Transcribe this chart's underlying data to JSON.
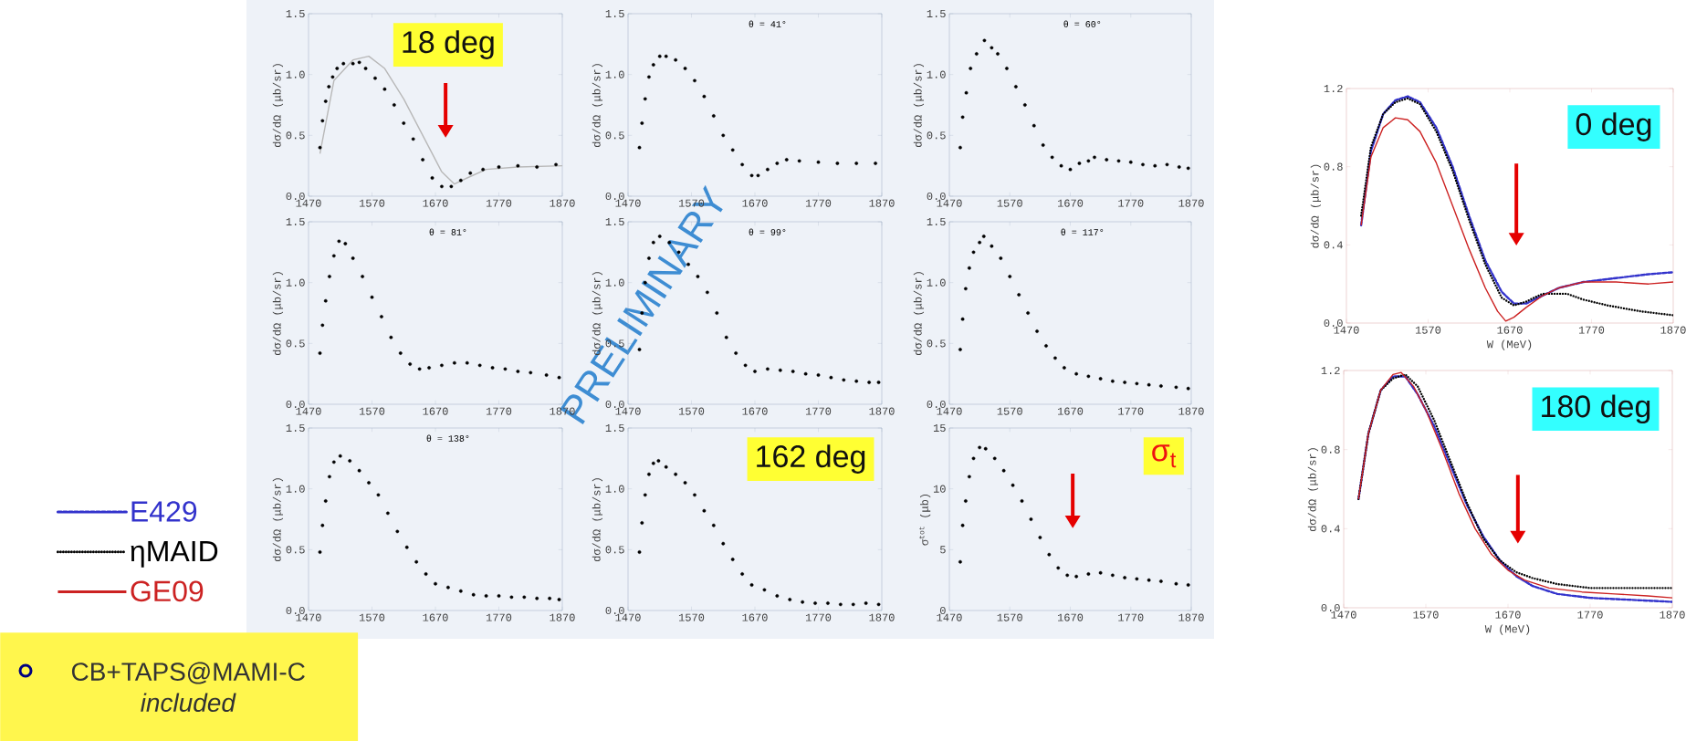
{
  "chart_data": [
    {
      "type": "scatter",
      "ylabel": "dσ/dΩ (μb/sr)",
      "marker": "circle",
      "xlim": [
        1470,
        1870
      ],
      "xticks": [
        1470,
        1570,
        1670,
        1770,
        1870
      ],
      "ylim": [
        0,
        1.5
      ],
      "yticks": [
        {
          "value": 0,
          "label": "0.0"
        },
        {
          "value": 0.5,
          "label": "0.5"
        },
        {
          "value": 1,
          "label": "1.0"
        },
        {
          "value": 1.5,
          "label": "1.5"
        }
      ],
      "annotations": [
        "18 deg"
      ],
      "series": [
        {
          "type": "scatter",
          "color": "#000000",
          "x": [
            1488,
            1492,
            1497,
            1502,
            1508,
            1515,
            1525,
            1540,
            1550,
            1560,
            1575,
            1590,
            1605,
            1620,
            1635,
            1650,
            1665,
            1680,
            1695,
            1710,
            1725,
            1745,
            1770,
            1800,
            1830,
            1860
          ],
          "values": [
            0.4,
            0.62,
            0.78,
            0.9,
            0.98,
            1.05,
            1.09,
            1.09,
            1.1,
            1.05,
            0.97,
            0.88,
            0.75,
            0.6,
            0.47,
            0.3,
            0.15,
            0.08,
            0.08,
            0.13,
            0.19,
            0.22,
            0.24,
            0.25,
            0.24,
            0.26
          ]
        },
        {
          "type": "line",
          "marker": "none",
          "color": "#b8b8b8",
          "x": [
            1488,
            1510,
            1540,
            1565,
            1590,
            1620,
            1650,
            1680,
            1700,
            1720,
            1750,
            1800,
            1870
          ],
          "values": [
            0.35,
            0.95,
            1.12,
            1.15,
            1.05,
            0.8,
            0.5,
            0.2,
            0.1,
            0.15,
            0.22,
            0.24,
            0.25
          ]
        }
      ]
    },
    {
      "type": "scatter",
      "title": "θ = 41°",
      "ylabel": "dσ/dΩ (μb/sr)",
      "marker": "circle",
      "xlim": [
        1470,
        1870
      ],
      "xticks": [
        1470,
        1570,
        1670,
        1770,
        1870
      ],
      "ylim": [
        0,
        1.5
      ],
      "yticks": [
        {
          "value": 0,
          "label": "0.0"
        },
        {
          "value": 0.5,
          "label": "0.5"
        },
        {
          "value": 1,
          "label": "1.0"
        },
        {
          "value": 1.5,
          "label": "1.5"
        }
      ],
      "series": [
        {
          "type": "scatter",
          "color": "#000000",
          "x": [
            1488,
            1492,
            1497,
            1503,
            1510,
            1520,
            1530,
            1545,
            1560,
            1575,
            1590,
            1605,
            1620,
            1635,
            1650,
            1665,
            1675,
            1690,
            1705,
            1720,
            1740,
            1770,
            1800,
            1830,
            1860
          ],
          "values": [
            0.4,
            0.6,
            0.8,
            0.98,
            1.08,
            1.15,
            1.15,
            1.12,
            1.05,
            0.95,
            0.82,
            0.66,
            0.5,
            0.38,
            0.26,
            0.17,
            0.17,
            0.22,
            0.27,
            0.3,
            0.29,
            0.28,
            0.27,
            0.27,
            0.27
          ]
        }
      ]
    },
    {
      "type": "scatter",
      "title": "θ = 60°",
      "ylabel": "dσ/dΩ (μb/sr)",
      "marker": "circle",
      "xlim": [
        1470,
        1870
      ],
      "xticks": [
        1470,
        1570,
        1670,
        1770,
        1870
      ],
      "ylim": [
        0,
        1.5
      ],
      "yticks": [
        {
          "value": 0,
          "label": "0.0"
        },
        {
          "value": 0.5,
          "label": "0.5"
        },
        {
          "value": 1,
          "label": "1.0"
        },
        {
          "value": 1.5,
          "label": "1.5"
        }
      ],
      "series": [
        {
          "type": "scatter",
          "color": "#000000",
          "x": [
            1488,
            1492,
            1498,
            1505,
            1515,
            1528,
            1540,
            1550,
            1565,
            1580,
            1595,
            1610,
            1625,
            1640,
            1655,
            1670,
            1685,
            1700,
            1710,
            1730,
            1750,
            1770,
            1790,
            1810,
            1830,
            1850,
            1865
          ],
          "values": [
            0.4,
            0.65,
            0.85,
            1.05,
            1.17,
            1.28,
            1.22,
            1.17,
            1.05,
            0.9,
            0.75,
            0.58,
            0.42,
            0.32,
            0.25,
            0.22,
            0.27,
            0.29,
            0.32,
            0.3,
            0.29,
            0.28,
            0.26,
            0.25,
            0.26,
            0.24,
            0.23
          ]
        }
      ]
    },
    {
      "type": "scatter",
      "title": "θ = 81°",
      "ylabel": "dσ/dΩ (μb/sr)",
      "marker": "circle",
      "xlim": [
        1470,
        1870
      ],
      "xticks": [
        1470,
        1570,
        1670,
        1770,
        1870
      ],
      "ylim": [
        0,
        1.5
      ],
      "yticks": [
        {
          "value": 0,
          "label": "0.0"
        },
        {
          "value": 0.5,
          "label": "0.5"
        },
        {
          "value": 1,
          "label": "1.0"
        },
        {
          "value": 1.5,
          "label": "1.5"
        }
      ],
      "series": [
        {
          "type": "scatter",
          "color": "#000000",
          "x": [
            1488,
            1492,
            1497,
            1503,
            1510,
            1518,
            1528,
            1540,
            1555,
            1570,
            1585,
            1600,
            1615,
            1630,
            1645,
            1660,
            1680,
            1700,
            1720,
            1740,
            1760,
            1780,
            1800,
            1820,
            1845,
            1865
          ],
          "values": [
            0.42,
            0.65,
            0.85,
            1.05,
            1.22,
            1.34,
            1.32,
            1.2,
            1.05,
            0.88,
            0.72,
            0.55,
            0.42,
            0.33,
            0.29,
            0.3,
            0.32,
            0.34,
            0.34,
            0.32,
            0.3,
            0.29,
            0.27,
            0.26,
            0.24,
            0.22
          ]
        }
      ]
    },
    {
      "type": "scatter",
      "title": "θ = 99°",
      "ylabel": "dσ/dΩ (μb/sr)",
      "marker": "circle",
      "xlim": [
        1470,
        1870
      ],
      "xticks": [
        1470,
        1570,
        1670,
        1770,
        1870
      ],
      "ylim": [
        0,
        1.5
      ],
      "yticks": [
        {
          "value": 0,
          "label": "0.0"
        },
        {
          "value": 0.5,
          "label": "0.5"
        },
        {
          "value": 1,
          "label": "1.0"
        },
        {
          "value": 1.5,
          "label": "1.5"
        }
      ],
      "annotations": [
        "PRELIMINARY"
      ],
      "series": [
        {
          "type": "scatter",
          "color": "#000000",
          "x": [
            1488,
            1492,
            1497,
            1503,
            1510,
            1520,
            1535,
            1550,
            1565,
            1580,
            1595,
            1610,
            1625,
            1640,
            1655,
            1670,
            1690,
            1710,
            1730,
            1750,
            1770,
            1790,
            1810,
            1830,
            1850,
            1865
          ],
          "values": [
            0.45,
            0.75,
            1.0,
            1.2,
            1.33,
            1.38,
            1.33,
            1.25,
            1.15,
            1.05,
            0.92,
            0.75,
            0.55,
            0.42,
            0.32,
            0.27,
            0.29,
            0.28,
            0.27,
            0.25,
            0.24,
            0.22,
            0.2,
            0.19,
            0.18,
            0.18
          ]
        }
      ]
    },
    {
      "type": "scatter",
      "title": "θ = 117°",
      "ylabel": "dσ/dΩ (μb/sr)",
      "marker": "circle",
      "xlim": [
        1470,
        1870
      ],
      "xticks": [
        1470,
        1570,
        1670,
        1770,
        1870
      ],
      "ylim": [
        0,
        1.5
      ],
      "yticks": [
        {
          "value": 0,
          "label": "0.0"
        },
        {
          "value": 0.5,
          "label": "0.5"
        },
        {
          "value": 1,
          "label": "1.0"
        },
        {
          "value": 1.5,
          "label": "1.5"
        }
      ],
      "series": [
        {
          "type": "scatter",
          "color": "#000000",
          "x": [
            1488,
            1492,
            1497,
            1503,
            1510,
            1520,
            1527,
            1540,
            1555,
            1570,
            1585,
            1600,
            1615,
            1630,
            1645,
            1660,
            1680,
            1700,
            1720,
            1740,
            1760,
            1780,
            1800,
            1820,
            1845,
            1865
          ],
          "values": [
            0.45,
            0.7,
            0.95,
            1.12,
            1.25,
            1.33,
            1.38,
            1.3,
            1.2,
            1.05,
            0.9,
            0.75,
            0.6,
            0.48,
            0.38,
            0.3,
            0.25,
            0.23,
            0.21,
            0.19,
            0.18,
            0.17,
            0.16,
            0.15,
            0.14,
            0.13
          ]
        }
      ]
    },
    {
      "type": "scatter",
      "title": "θ = 138°",
      "ylabel": "dσ/dΩ (μb/sr)",
      "marker": "circle",
      "xlim": [
        1470,
        1870
      ],
      "xticks": [
        1470,
        1570,
        1670,
        1770,
        1870
      ],
      "ylim": [
        0,
        1.5
      ],
      "yticks": [
        {
          "value": 0,
          "label": "0.0"
        },
        {
          "value": 0.5,
          "label": "0.5"
        },
        {
          "value": 1,
          "label": "1.0"
        },
        {
          "value": 1.5,
          "label": "1.5"
        }
      ],
      "series": [
        {
          "type": "scatter",
          "color": "#000000",
          "x": [
            1488,
            1492,
            1497,
            1503,
            1510,
            1520,
            1535,
            1550,
            1565,
            1580,
            1595,
            1610,
            1625,
            1640,
            1655,
            1670,
            1690,
            1710,
            1730,
            1750,
            1770,
            1790,
            1810,
            1830,
            1850,
            1865
          ],
          "values": [
            0.48,
            0.7,
            0.9,
            1.1,
            1.22,
            1.27,
            1.23,
            1.15,
            1.05,
            0.95,
            0.8,
            0.65,
            0.52,
            0.4,
            0.3,
            0.22,
            0.19,
            0.16,
            0.13,
            0.12,
            0.12,
            0.11,
            0.11,
            0.1,
            0.1,
            0.09
          ]
        }
      ]
    },
    {
      "type": "scatter",
      "ylabel": "dσ/dΩ (μb/sr)",
      "marker": "circle",
      "xlim": [
        1470,
        1870
      ],
      "xticks": [
        1470,
        1570,
        1670,
        1770,
        1870
      ],
      "ylim": [
        0,
        1.5
      ],
      "yticks": [
        {
          "value": 0,
          "label": "0.0"
        },
        {
          "value": 0.5,
          "label": "0.5"
        },
        {
          "value": 1,
          "label": "1.0"
        },
        {
          "value": 1.5,
          "label": "1.5"
        }
      ],
      "annotations": [
        "162 deg"
      ],
      "series": [
        {
          "type": "scatter",
          "color": "#000000",
          "x": [
            1488,
            1492,
            1497,
            1503,
            1510,
            1518,
            1530,
            1545,
            1560,
            1575,
            1590,
            1605,
            1620,
            1635,
            1650,
            1665,
            1685,
            1705,
            1725,
            1745,
            1765,
            1785,
            1805,
            1825,
            1845,
            1865
          ],
          "values": [
            0.48,
            0.72,
            0.95,
            1.12,
            1.21,
            1.23,
            1.18,
            1.12,
            1.05,
            0.95,
            0.82,
            0.7,
            0.55,
            0.42,
            0.3,
            0.21,
            0.17,
            0.12,
            0.09,
            0.07,
            0.06,
            0.06,
            0.05,
            0.05,
            0.06,
            0.05
          ]
        }
      ]
    },
    {
      "type": "scatter",
      "ylabel": "σ$^{tot}$ (μb)",
      "marker": "circle",
      "xlim": [
        1470,
        1870
      ],
      "xticks": [
        1470,
        1570,
        1670,
        1770,
        1870
      ],
      "ylim": [
        0,
        15
      ],
      "yticks": [
        0,
        5,
        10,
        15
      ],
      "annotations": [
        "σ$_{t}$"
      ],
      "series": [
        {
          "type": "scatter",
          "color": "#000000",
          "x": [
            1488,
            1492,
            1497,
            1503,
            1510,
            1520,
            1530,
            1545,
            1560,
            1575,
            1590,
            1605,
            1620,
            1635,
            1650,
            1665,
            1680,
            1700,
            1720,
            1740,
            1760,
            1780,
            1800,
            1820,
            1845,
            1865
          ],
          "values": [
            4.0,
            7.0,
            9.0,
            11.0,
            12.5,
            13.4,
            13.3,
            12.5,
            11.5,
            10.3,
            9.0,
            7.5,
            6.0,
            4.6,
            3.5,
            2.9,
            2.8,
            3.0,
            3.1,
            2.9,
            2.7,
            2.6,
            2.5,
            2.4,
            2.2,
            2.1
          ]
        }
      ]
    },
    {
      "type": "line",
      "xlabel": "W (MeV)",
      "ylabel": "dσ/dΩ (μb/sr)",
      "legend": "left",
      "xlim": [
        1470,
        1870
      ],
      "xticks": [
        1470,
        1570,
        1670,
        1770,
        1870
      ],
      "ylim": [
        0,
        1.2
      ],
      "yticks": [
        {
          "value": 0,
          "label": "0.0"
        },
        {
          "value": 0.4,
          "label": "0.4"
        },
        {
          "value": 0.8,
          "label": "0.8"
        },
        {
          "value": 1.2,
          "label": "1.2"
        }
      ],
      "annotations": [
        "0 deg",
        "CB+TAPS@MAMI-C *included*"
      ],
      "series": [
        {
          "name": "E429",
          "color": "#3333cc",
          "line_style": "dashed",
          "x": [
            1488,
            1500,
            1515,
            1530,
            1545,
            1560,
            1580,
            1600,
            1620,
            1640,
            1660,
            1675,
            1690,
            1710,
            1730,
            1760,
            1800,
            1840,
            1870
          ],
          "values": [
            0.5,
            0.88,
            1.07,
            1.14,
            1.16,
            1.13,
            1.0,
            0.8,
            0.55,
            0.32,
            0.16,
            0.1,
            0.1,
            0.14,
            0.18,
            0.21,
            0.23,
            0.25,
            0.26
          ]
        },
        {
          "name": "ηMAID",
          "color": "#000000",
          "line_style": "dotted",
          "x": [
            1488,
            1500,
            1515,
            1530,
            1545,
            1560,
            1580,
            1600,
            1620,
            1640,
            1660,
            1675,
            1690,
            1710,
            1740,
            1760,
            1790,
            1830,
            1870
          ],
          "values": [
            0.55,
            0.9,
            1.07,
            1.13,
            1.15,
            1.12,
            0.98,
            0.78,
            0.53,
            0.3,
            0.13,
            0.09,
            0.11,
            0.15,
            0.15,
            0.12,
            0.09,
            0.06,
            0.04
          ]
        },
        {
          "name": "GE09",
          "color": "#cc2222",
          "line_style": "solid",
          "x": [
            1488,
            1500,
            1515,
            1530,
            1545,
            1560,
            1580,
            1600,
            1620,
            1640,
            1655,
            1665,
            1675,
            1690,
            1710,
            1730,
            1760,
            1800,
            1840,
            1870
          ],
          "values": [
            0.5,
            0.85,
            1.0,
            1.05,
            1.04,
            0.98,
            0.82,
            0.6,
            0.38,
            0.18,
            0.06,
            0.01,
            0.03,
            0.08,
            0.14,
            0.18,
            0.21,
            0.21,
            0.2,
            0.21
          ]
        }
      ]
    },
    {
      "type": "line",
      "xlabel": "W (MeV)",
      "ylabel": "dσ/dΩ (μb/sr)",
      "xlim": [
        1470,
        1870
      ],
      "xticks": [
        1470,
        1570,
        1670,
        1770,
        1870
      ],
      "ylim": [
        0,
        1.2
      ],
      "yticks": [
        {
          "value": 0,
          "label": "0.0"
        },
        {
          "value": 0.4,
          "label": "0.4"
        },
        {
          "value": 0.8,
          "label": "0.8"
        },
        {
          "value": 1.2,
          "label": "1.2"
        }
      ],
      "annotations": [
        "180 deg"
      ],
      "series": [
        {
          "color": "#3333cc",
          "line_style": "dashed",
          "x": [
            1488,
            1500,
            1515,
            1530,
            1545,
            1560,
            1580,
            1600,
            1620,
            1640,
            1660,
            1680,
            1700,
            1730,
            1770,
            1820,
            1870
          ],
          "values": [
            0.55,
            0.88,
            1.1,
            1.17,
            1.17,
            1.08,
            0.92,
            0.72,
            0.52,
            0.36,
            0.24,
            0.16,
            0.11,
            0.07,
            0.05,
            0.04,
            0.03
          ]
        },
        {
          "color": "#000000",
          "line_style": "dotted",
          "x": [
            1488,
            1500,
            1515,
            1530,
            1545,
            1560,
            1580,
            1600,
            1620,
            1640,
            1660,
            1680,
            1700,
            1730,
            1770,
            1820,
            1870
          ],
          "values": [
            0.55,
            0.88,
            1.1,
            1.16,
            1.18,
            1.12,
            0.95,
            0.74,
            0.53,
            0.35,
            0.24,
            0.18,
            0.15,
            0.12,
            0.1,
            0.1,
            0.1
          ]
        },
        {
          "color": "#cc2222",
          "line_style": "solid",
          "x": [
            1488,
            1500,
            1515,
            1530,
            1540,
            1555,
            1570,
            1590,
            1610,
            1630,
            1650,
            1670,
            1690,
            1720,
            1760,
            1800,
            1840,
            1870
          ],
          "values": [
            0.55,
            0.88,
            1.1,
            1.18,
            1.19,
            1.12,
            1.0,
            0.8,
            0.58,
            0.4,
            0.27,
            0.19,
            0.14,
            0.1,
            0.08,
            0.07,
            0.06,
            0.05
          ]
        }
      ]
    }
  ]
}
